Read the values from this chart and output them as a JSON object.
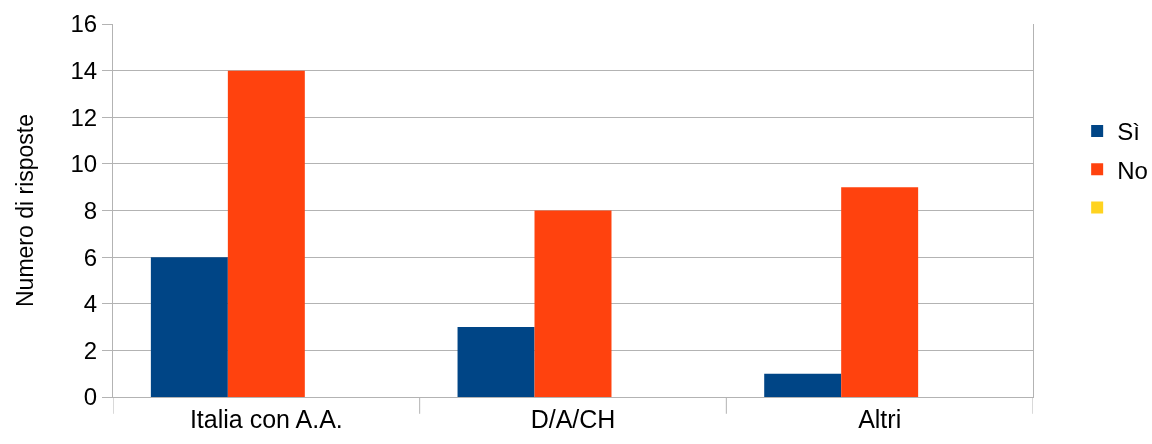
{
  "chart_data": {
    "type": "bar",
    "ylabel": "Numero di risposte",
    "categories": [
      "Italia con A.A.",
      "D/A/CH",
      "Altri"
    ],
    "series": [
      {
        "name": "Sì",
        "color": "#004586",
        "values": [
          6,
          3,
          1
        ]
      },
      {
        "name": "No",
        "color": "#ff420e",
        "values": [
          14,
          8,
          9
        ]
      },
      {
        "color": "#ffd320",
        "values": [
          null,
          null,
          null
        ]
      }
    ],
    "ylim": [
      0,
      16
    ],
    "yticks": [
      0,
      2,
      4,
      6,
      8,
      10,
      12,
      14,
      16
    ],
    "grid": "y",
    "legend": "right"
  }
}
